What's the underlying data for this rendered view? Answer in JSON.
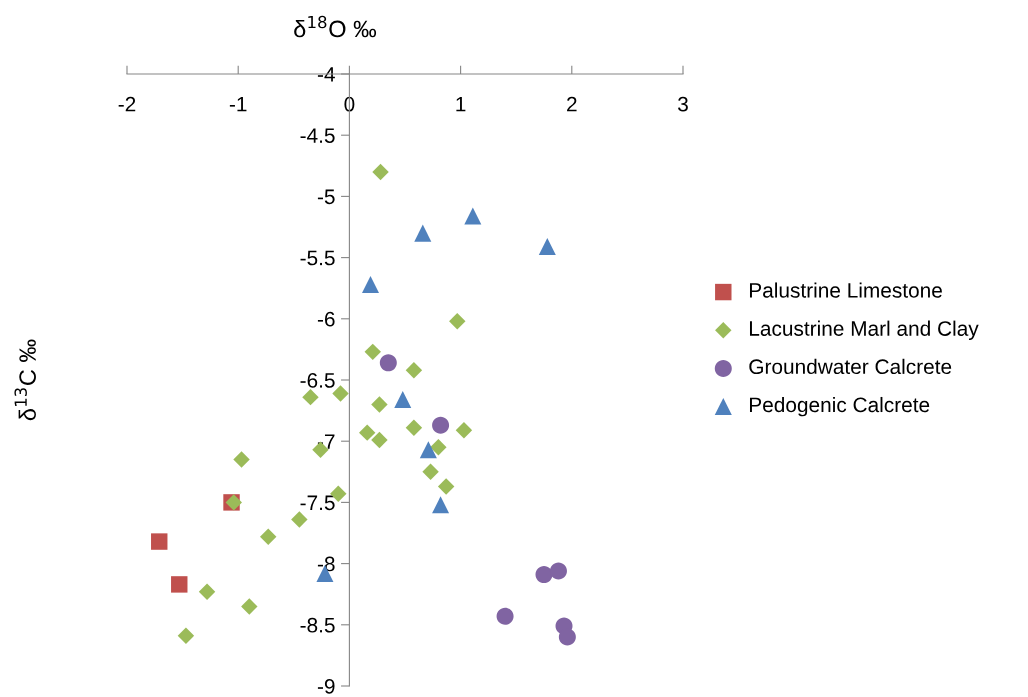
{
  "chart_data": {
    "type": "scatter",
    "xlabel": "δ$^{18}$O ‰",
    "ylabel": "δ$^{13}$C ‰",
    "xlim": [
      -2,
      3
    ],
    "xticks": [
      -2,
      -1,
      0,
      1,
      2,
      3
    ],
    "ylim": [
      -9,
      -4
    ],
    "yticks": [
      -4,
      -4.5,
      -5,
      -5.5,
      -6,
      -6.5,
      -7,
      -7.5,
      -8,
      -8.5,
      -9
    ],
    "grid": false,
    "legend": "right",
    "series": [
      {
        "name": "Palustrine Limestone",
        "color": "#c0504d",
        "marker": "square",
        "x": [
          -1.06,
          -1.71,
          -1.53
        ],
        "values": [
          -7.5,
          -7.82,
          -8.17
        ]
      },
      {
        "name": "Lacustrine Marl and Clay",
        "color": "#9bbb59",
        "marker": "diamond",
        "x": [
          0.28,
          0.97,
          0.21,
          0.58,
          -0.35,
          -0.08,
          0.27,
          0.16,
          0.27,
          0.58,
          1.03,
          0.8,
          -0.26,
          -0.97,
          0.73,
          0.87,
          -0.1,
          -1.04,
          -0.45,
          -0.73,
          -1.28,
          -0.9,
          -1.47
        ],
        "values": [
          -4.8,
          -6.02,
          -6.27,
          -6.42,
          -6.64,
          -6.61,
          -6.7,
          -6.93,
          -6.99,
          -6.89,
          -6.91,
          -7.05,
          -7.07,
          -7.15,
          -7.25,
          -7.37,
          -7.43,
          -7.5,
          -7.64,
          -7.78,
          -8.23,
          -8.35,
          -8.59
        ]
      },
      {
        "name": "Groundwater Calcrete",
        "color": "#8064a2",
        "marker": "circle",
        "x": [
          0.35,
          0.82,
          1.75,
          1.88,
          1.4,
          1.93,
          1.96
        ],
        "values": [
          -6.36,
          -6.87,
          -8.09,
          -8.06,
          -8.43,
          -8.51,
          -8.6
        ]
      },
      {
        "name": "Pedogenic Calcrete",
        "color": "#4f81bd",
        "marker": "triangle",
        "x": [
          1.11,
          0.66,
          1.78,
          0.19,
          0.48,
          0.71,
          0.82,
          -0.22
        ],
        "values": [
          -5.16,
          -5.3,
          -5.41,
          -5.72,
          -6.66,
          -7.07,
          -7.52,
          -8.08
        ]
      }
    ]
  }
}
